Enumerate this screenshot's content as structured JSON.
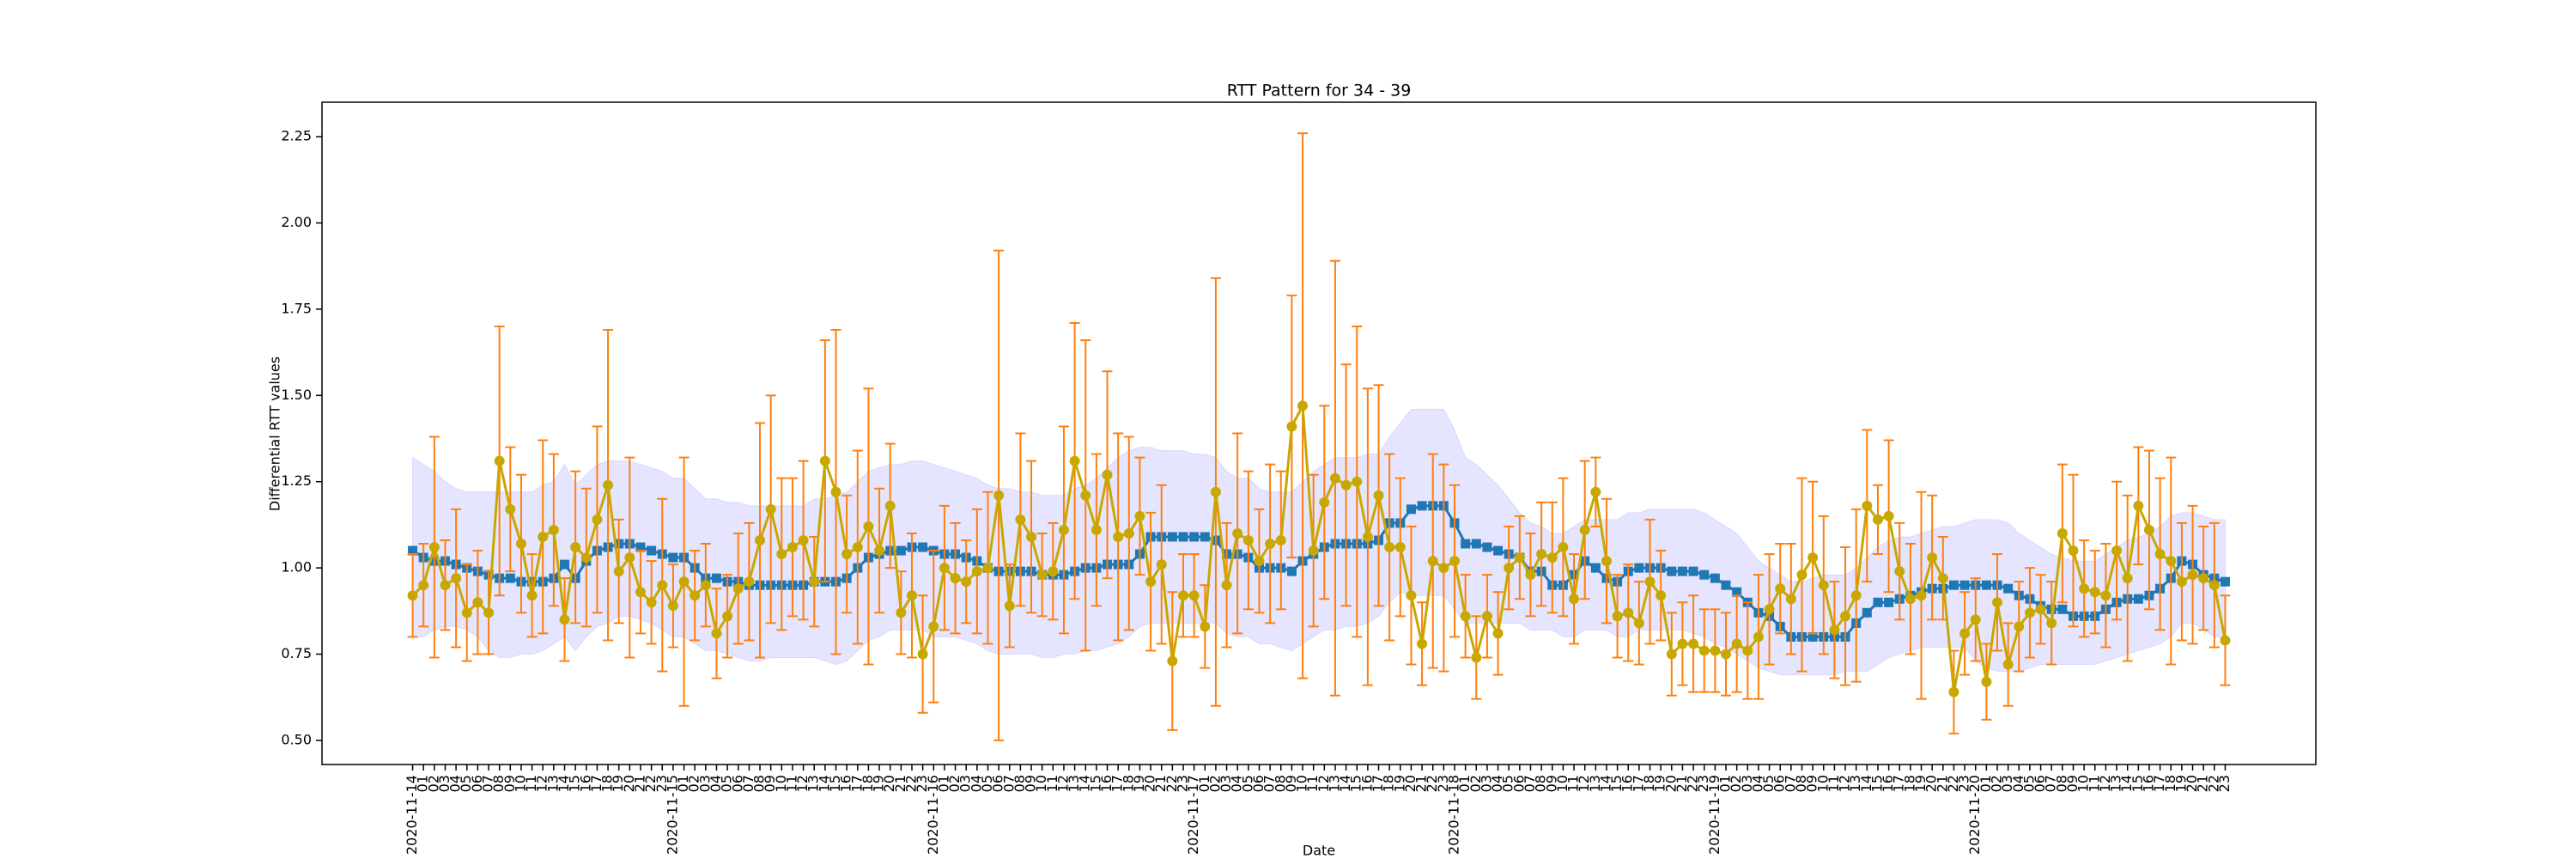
{
  "chart_data": {
    "type": "line",
    "title": "RTT Pattern for 34 - 39",
    "xlabel": "Date",
    "ylabel": "Differential RTT values",
    "categories": [
      "2020-11-14",
      "01",
      "02",
      "03",
      "04",
      "05",
      "06",
      "07",
      "08",
      "09",
      "10",
      "11",
      "12",
      "13",
      "14",
      "15",
      "16",
      "17",
      "18",
      "19",
      "20",
      "21",
      "22",
      "23",
      "2020-11-15",
      "01",
      "02",
      "03",
      "04",
      "05",
      "06",
      "07",
      "08",
      "09",
      "10",
      "11",
      "12",
      "13",
      "14",
      "15",
      "16",
      "17",
      "18",
      "19",
      "20",
      "21",
      "22",
      "23",
      "2020-11-16",
      "01",
      "02",
      "03",
      "04",
      "05",
      "06",
      "07",
      "08",
      "09",
      "10",
      "11",
      "12",
      "13",
      "14",
      "15",
      "16",
      "17",
      "18",
      "19",
      "20",
      "21",
      "22",
      "23",
      "2020-11-17",
      "01",
      "02",
      "03",
      "04",
      "05",
      "06",
      "07",
      "08",
      "09",
      "10",
      "11",
      "12",
      "13",
      "14",
      "15",
      "16",
      "17",
      "18",
      "19",
      "20",
      "21",
      "22",
      "23",
      "2020-11-18",
      "01",
      "02",
      "03",
      "04",
      "05",
      "06",
      "07",
      "08",
      "09",
      "10",
      "11",
      "12",
      "13",
      "14",
      "15",
      "16",
      "17",
      "18",
      "19",
      "20",
      "21",
      "22",
      "23",
      "2020-11-19",
      "01",
      "02",
      "03",
      "04",
      "05",
      "06",
      "07",
      "08",
      "09",
      "10",
      "11",
      "12",
      "13",
      "14",
      "15",
      "16",
      "17",
      "18",
      "19",
      "20",
      "21",
      "22",
      "23",
      "2020-11-20",
      "01",
      "02",
      "03",
      "04",
      "05",
      "06",
      "07",
      "08",
      "09",
      "10",
      "11",
      "12",
      "13",
      "14",
      "15",
      "16",
      "17",
      "18",
      "19",
      "20",
      "21",
      "22",
      "23"
    ],
    "ylim": [
      0.43,
      2.35
    ],
    "yticks": [
      {
        "value": 0.5,
        "label": "0.50"
      },
      {
        "value": 0.75,
        "label": "0.75"
      },
      {
        "value": 1.0,
        "label": "1.00"
      },
      {
        "value": 1.25,
        "label": "1.25"
      },
      {
        "value": 1.5,
        "label": "1.50"
      },
      {
        "value": 1.75,
        "label": "1.75"
      },
      {
        "value": 2.0,
        "label": "2.00"
      },
      {
        "value": 2.25,
        "label": "2.25"
      }
    ],
    "band": {
      "color": "#0000ff",
      "opacity": 0.1,
      "upper": [
        1.32,
        1.3,
        1.28,
        1.25,
        1.23,
        1.22,
        1.22,
        1.22,
        1.22,
        1.22,
        1.22,
        1.22,
        1.24,
        1.25,
        1.3,
        1.24,
        1.27,
        1.3,
        1.31,
        1.31,
        1.31,
        1.3,
        1.29,
        1.28,
        1.26,
        1.26,
        1.23,
        1.2,
        1.2,
        1.19,
        1.19,
        1.18,
        1.18,
        1.18,
        1.18,
        1.18,
        1.18,
        1.2,
        1.2,
        1.21,
        1.22,
        1.25,
        1.28,
        1.29,
        1.3,
        1.3,
        1.31,
        1.31,
        1.3,
        1.29,
        1.28,
        1.27,
        1.26,
        1.24,
        1.23,
        1.23,
        1.22,
        1.22,
        1.21,
        1.21,
        1.21,
        1.23,
        1.24,
        1.26,
        1.29,
        1.32,
        1.34,
        1.35,
        1.35,
        1.34,
        1.34,
        1.34,
        1.33,
        1.33,
        1.32,
        1.28,
        1.26,
        1.26,
        1.23,
        1.22,
        1.22,
        1.22,
        1.25,
        1.28,
        1.3,
        1.32,
        1.32,
        1.32,
        1.33,
        1.33,
        1.38,
        1.42,
        1.46,
        1.46,
        1.46,
        1.46,
        1.4,
        1.32,
        1.3,
        1.27,
        1.24,
        1.2,
        1.16,
        1.13,
        1.12,
        1.1,
        1.1,
        1.12,
        1.14,
        1.14,
        1.14,
        1.14,
        1.16,
        1.16,
        1.17,
        1.17,
        1.17,
        1.17,
        1.17,
        1.16,
        1.14,
        1.12,
        1.1,
        1.06,
        1.02,
        1.0,
        0.98,
        0.96,
        0.96,
        0.97,
        0.98,
        0.98,
        0.98,
        1.0,
        1.03,
        1.06,
        1.08,
        1.09,
        1.09,
        1.1,
        1.11,
        1.12,
        1.12,
        1.13,
        1.14,
        1.14,
        1.14,
        1.13,
        1.1,
        1.08,
        1.06,
        1.04,
        1.03,
        1.02,
        1.02,
        1.02,
        1.04,
        1.06,
        1.08,
        1.09,
        1.1,
        1.12,
        1.15,
        1.16,
        1.16,
        1.15,
        1.14,
        1.14
      ],
      "lower": [
        0.8,
        0.8,
        0.82,
        0.83,
        0.83,
        0.82,
        0.8,
        0.76,
        0.74,
        0.74,
        0.75,
        0.75,
        0.76,
        0.78,
        0.8,
        0.76,
        0.8,
        0.83,
        0.84,
        0.86,
        0.86,
        0.85,
        0.84,
        0.82,
        0.8,
        0.8,
        0.78,
        0.76,
        0.76,
        0.75,
        0.74,
        0.73,
        0.73,
        0.74,
        0.74,
        0.74,
        0.74,
        0.74,
        0.73,
        0.72,
        0.73,
        0.76,
        0.79,
        0.8,
        0.82,
        0.82,
        0.82,
        0.82,
        0.8,
        0.8,
        0.8,
        0.79,
        0.78,
        0.76,
        0.75,
        0.75,
        0.75,
        0.75,
        0.74,
        0.74,
        0.75,
        0.75,
        0.76,
        0.76,
        0.77,
        0.78,
        0.8,
        0.83,
        0.84,
        0.84,
        0.84,
        0.84,
        0.84,
        0.84,
        0.84,
        0.81,
        0.8,
        0.8,
        0.78,
        0.78,
        0.77,
        0.76,
        0.78,
        0.8,
        0.82,
        0.82,
        0.83,
        0.83,
        0.84,
        0.86,
        0.9,
        0.93,
        0.92,
        0.92,
        0.92,
        0.92,
        0.88,
        0.84,
        0.84,
        0.84,
        0.84,
        0.84,
        0.84,
        0.82,
        0.82,
        0.82,
        0.8,
        0.8,
        0.82,
        0.82,
        0.82,
        0.8,
        0.8,
        0.82,
        0.82,
        0.82,
        0.82,
        0.82,
        0.81,
        0.8,
        0.78,
        0.77,
        0.75,
        0.73,
        0.71,
        0.7,
        0.69,
        0.69,
        0.69,
        0.69,
        0.69,
        0.69,
        0.7,
        0.7,
        0.7,
        0.72,
        0.74,
        0.75,
        0.76,
        0.77,
        0.77,
        0.77,
        0.77,
        0.77,
        0.73,
        0.71,
        0.7,
        0.7,
        0.7,
        0.71,
        0.72,
        0.72,
        0.72,
        0.72,
        0.72,
        0.72,
        0.73,
        0.74,
        0.75,
        0.76,
        0.77,
        0.78,
        0.8,
        0.84,
        0.84,
        0.82,
        0.8,
        0.8
      ]
    },
    "series": [
      {
        "color": "#1f77b4",
        "marker": "square",
        "values": [
          1.05,
          1.03,
          1.02,
          1.02,
          1.01,
          1.0,
          0.99,
          0.98,
          0.97,
          0.97,
          0.96,
          0.96,
          0.96,
          0.97,
          1.01,
          0.97,
          1.02,
          1.05,
          1.06,
          1.07,
          1.07,
          1.06,
          1.05,
          1.04,
          1.03,
          1.03,
          1.0,
          0.97,
          0.97,
          0.96,
          0.96,
          0.95,
          0.95,
          0.95,
          0.95,
          0.95,
          0.95,
          0.96,
          0.96,
          0.96,
          0.97,
          1.0,
          1.03,
          1.04,
          1.05,
          1.05,
          1.06,
          1.06,
          1.05,
          1.04,
          1.04,
          1.03,
          1.02,
          1.0,
          0.99,
          0.99,
          0.99,
          0.99,
          0.98,
          0.98,
          0.98,
          0.99,
          1.0,
          1.0,
          1.01,
          1.01,
          1.01,
          1.04,
          1.09,
          1.09,
          1.09,
          1.09,
          1.09,
          1.09,
          1.08,
          1.04,
          1.04,
          1.03,
          1.0,
          1.0,
          1.0,
          0.99,
          1.02,
          1.04,
          1.06,
          1.07,
          1.07,
          1.07,
          1.07,
          1.08,
          1.13,
          1.13,
          1.17,
          1.18,
          1.18,
          1.18,
          1.13,
          1.07,
          1.07,
          1.06,
          1.05,
          1.04,
          1.03,
          0.99,
          0.99,
          0.95,
          0.95,
          0.98,
          1.02,
          1.0,
          0.97,
          0.96,
          0.99,
          1.0,
          1.0,
          1.0,
          0.99,
          0.99,
          0.99,
          0.98,
          0.97,
          0.95,
          0.93,
          0.9,
          0.87,
          0.86,
          0.83,
          0.8,
          0.8,
          0.8,
          0.8,
          0.8,
          0.8,
          0.84,
          0.87,
          0.9,
          0.9,
          0.91,
          0.92,
          0.93,
          0.94,
          0.94,
          0.95,
          0.95,
          0.95,
          0.95,
          0.95,
          0.94,
          0.92,
          0.91,
          0.89,
          0.88,
          0.88,
          0.86,
          0.86,
          0.86,
          0.88,
          0.9,
          0.91,
          0.91,
          0.92,
          0.94,
          0.97,
          1.02,
          1.01,
          0.98,
          0.97,
          0.96
        ]
      },
      {
        "color": "#c8a800",
        "marker": "circle",
        "error_color": "#ff7f0e",
        "values": [
          0.92,
          0.95,
          1.06,
          0.95,
          0.97,
          0.87,
          0.9,
          0.87,
          1.31,
          1.17,
          1.07,
          0.92,
          1.09,
          1.11,
          0.85,
          1.06,
          1.03,
          1.14,
          1.24,
          0.99,
          1.03,
          0.93,
          0.9,
          0.95,
          0.89,
          0.96,
          0.92,
          0.95,
          0.81,
          0.86,
          0.94,
          0.96,
          1.08,
          1.17,
          1.04,
          1.06,
          1.08,
          0.96,
          1.31,
          1.22,
          1.04,
          1.06,
          1.12,
          1.05,
          1.18,
          0.87,
          0.92,
          0.75,
          0.83,
          1.0,
          0.97,
          0.96,
          0.99,
          1.0,
          1.21,
          0.89,
          1.14,
          1.09,
          0.98,
          0.99,
          1.11,
          1.31,
          1.21,
          1.11,
          1.27,
          1.09,
          1.1,
          1.15,
          0.96,
          1.01,
          0.73,
          0.92,
          0.92,
          0.83,
          1.22,
          0.95,
          1.1,
          1.08,
          1.02,
          1.07,
          1.08,
          1.41,
          1.47,
          1.05,
          1.19,
          1.26,
          1.24,
          1.25,
          1.09,
          1.21,
          1.06,
          1.06,
          0.92,
          0.78,
          1.02,
          1.0,
          1.02,
          0.86,
          0.74,
          0.86,
          0.81,
          1.0,
          1.03,
          0.98,
          1.04,
          1.03,
          1.06,
          0.91,
          1.11,
          1.22,
          1.02,
          0.86,
          0.87,
          0.84,
          0.96,
          0.92,
          0.75,
          0.78,
          0.78,
          0.76,
          0.76,
          0.75,
          0.78,
          0.76,
          0.8,
          0.88,
          0.94,
          0.91,
          0.98,
          1.03,
          0.95,
          0.82,
          0.86,
          0.92,
          1.18,
          1.14,
          1.15,
          0.99,
          0.91,
          0.92,
          1.03,
          0.97,
          0.64,
          0.81,
          0.85,
          0.67,
          0.9,
          0.72,
          0.83,
          0.87,
          0.88,
          0.84,
          1.1,
          1.05,
          0.94,
          0.93,
          0.92,
          1.05,
          0.97,
          1.18,
          1.11,
          1.04,
          1.02,
          0.96,
          0.98,
          0.97,
          0.95,
          0.79
        ],
        "errors": [
          0.12,
          0.12,
          0.32,
          0.13,
          0.2,
          0.14,
          0.15,
          0.12,
          0.39,
          0.18,
          0.2,
          0.12,
          0.28,
          0.22,
          0.12,
          0.22,
          0.2,
          0.27,
          0.45,
          0.15,
          0.29,
          0.12,
          0.12,
          0.25,
          0.12,
          0.36,
          0.13,
          0.12,
          0.13,
          0.12,
          0.16,
          0.17,
          0.34,
          0.33,
          0.22,
          0.2,
          0.23,
          0.13,
          0.35,
          0.47,
          0.17,
          0.28,
          0.4,
          0.18,
          0.18,
          0.12,
          0.18,
          0.17,
          0.22,
          0.18,
          0.16,
          0.12,
          0.18,
          0.22,
          0.71,
          0.12,
          0.25,
          0.22,
          0.12,
          0.14,
          0.3,
          0.4,
          0.45,
          0.22,
          0.3,
          0.3,
          0.28,
          0.17,
          0.2,
          0.23,
          0.2,
          0.12,
          0.12,
          0.12,
          0.62,
          0.18,
          0.29,
          0.2,
          0.15,
          0.23,
          0.2,
          0.38,
          0.79,
          0.22,
          0.28,
          0.63,
          0.35,
          0.45,
          0.43,
          0.32,
          0.27,
          0.2,
          0.2,
          0.12,
          0.31,
          0.3,
          0.22,
          0.12,
          0.12,
          0.12,
          0.12,
          0.12,
          0.12,
          0.12,
          0.15,
          0.16,
          0.2,
          0.13,
          0.2,
          0.1,
          0.18,
          0.12,
          0.14,
          0.12,
          0.18,
          0.13,
          0.12,
          0.12,
          0.14,
          0.12,
          0.12,
          0.12,
          0.14,
          0.14,
          0.18,
          0.16,
          0.13,
          0.16,
          0.28,
          0.22,
          0.2,
          0.14,
          0.2,
          0.25,
          0.22,
          0.1,
          0.22,
          0.14,
          0.16,
          0.3,
          0.18,
          0.12,
          0.12,
          0.12,
          0.12,
          0.11,
          0.14,
          0.12,
          0.13,
          0.13,
          0.1,
          0.12,
          0.2,
          0.22,
          0.14,
          0.12,
          0.15,
          0.2,
          0.24,
          0.17,
          0.23,
          0.22,
          0.3,
          0.17,
          0.2,
          0.15,
          0.18,
          0.13
        ]
      }
    ]
  }
}
